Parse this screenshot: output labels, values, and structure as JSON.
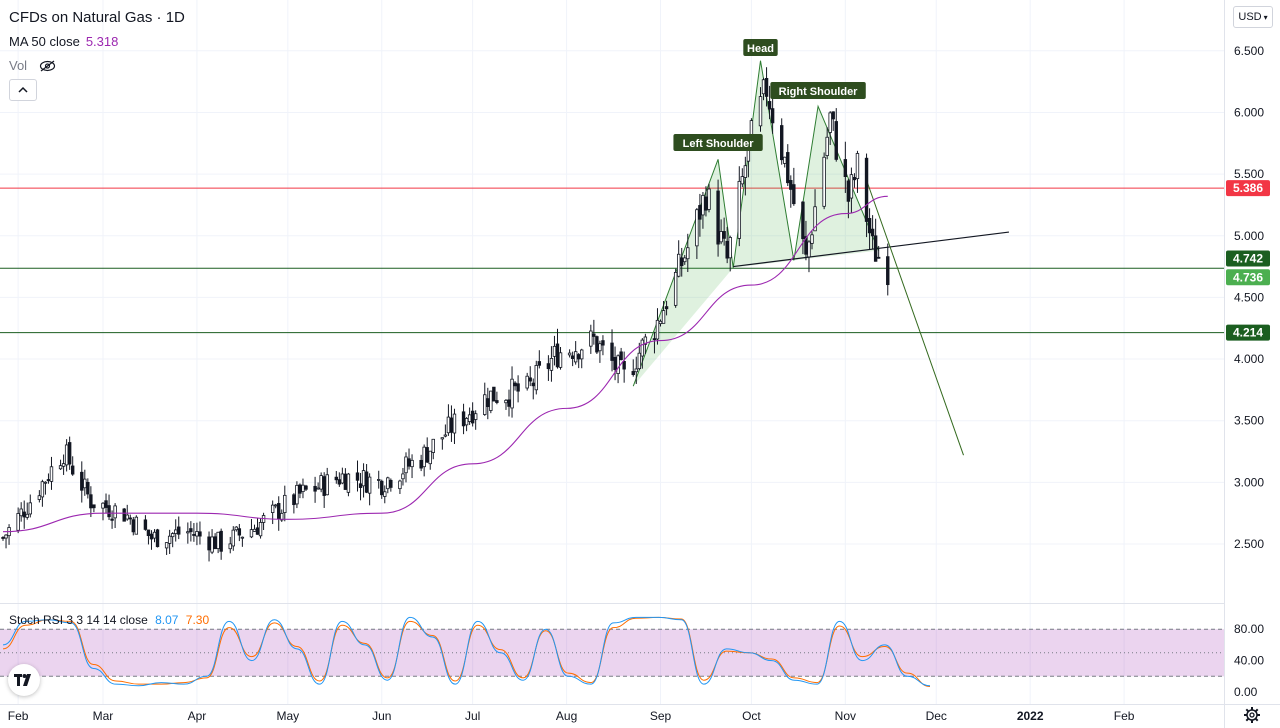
{
  "header": {
    "title": "CFDs on Natural Gas · 1D",
    "ma_label": "MA 50 close",
    "ma_value": "5.318",
    "vol_label": "Vol",
    "currency": "USD"
  },
  "stoch": {
    "label": "Stoch RSI 3 3 14 14 close",
    "k_value": "8.07",
    "d_value": "7.30"
  },
  "colors": {
    "up": "#26a69a",
    "down": "#ef5350",
    "candle": "#131722",
    "ma": "#9c27b0",
    "stoch_k": "#2196f3",
    "stoch_d": "#ff6d00",
    "resistance": "#f23645",
    "support": "#1b5e20",
    "pattern": "#4caf50"
  },
  "chart_data": {
    "type": "candlestick",
    "y_range": [
      2.2,
      6.7
    ],
    "y_ticks": [
      "6.500",
      "6.000",
      "5.500",
      "5.000",
      "4.500",
      "4.000",
      "3.500",
      "3.000",
      "2.500"
    ],
    "x_ticks": [
      "Feb",
      "Mar",
      "Apr",
      "May",
      "Jun",
      "Jul",
      "Aug",
      "Sep",
      "Oct",
      "Nov",
      "Dec",
      "2022",
      "Feb"
    ],
    "series": [
      {
        "name": "CFDs on Natural Gas",
        "kind": "candles",
        "close_path": [
          [
            "2021-01-27",
            2.55
          ],
          [
            "2021-02-05",
            2.85
          ],
          [
            "2021-02-16",
            3.25
          ],
          [
            "2021-02-25",
            2.85
          ],
          [
            "2021-03-08",
            2.75
          ],
          [
            "2021-03-17",
            2.55
          ],
          [
            "2021-03-29",
            2.6
          ],
          [
            "2021-04-09",
            2.5
          ],
          [
            "2021-04-21",
            2.65
          ],
          [
            "2021-05-05",
            2.9
          ],
          [
            "2021-05-19",
            3.05
          ],
          [
            "2021-06-01",
            3.0
          ],
          [
            "2021-06-14",
            3.2
          ],
          [
            "2021-06-24",
            3.45
          ],
          [
            "2021-07-06",
            3.7
          ],
          [
            "2021-07-19",
            3.75
          ],
          [
            "2021-07-29",
            4.05
          ],
          [
            "2021-08-10",
            4.15
          ],
          [
            "2021-08-20",
            3.85
          ],
          [
            "2021-08-31",
            4.3
          ],
          [
            "2021-09-10",
            4.9
          ],
          [
            "2021-09-16",
            5.35
          ],
          [
            "2021-09-23",
            4.8
          ],
          [
            "2021-09-30",
            5.7
          ],
          [
            "2021-10-06",
            6.2
          ],
          [
            "2021-10-13",
            5.5
          ],
          [
            "2021-10-19",
            4.8
          ],
          [
            "2021-10-27",
            5.95
          ],
          [
            "2021-11-02",
            5.3
          ],
          [
            "2021-11-05",
            5.55
          ],
          [
            "2021-11-10",
            4.9
          ],
          [
            "2021-11-15",
            4.74
          ]
        ]
      },
      {
        "name": "MA 50 close",
        "kind": "line",
        "points": [
          [
            "2021-01-27",
            2.6
          ],
          [
            "2021-03-01",
            2.75
          ],
          [
            "2021-04-01",
            2.75
          ],
          [
            "2021-05-01",
            2.7
          ],
          [
            "2021-06-01",
            2.75
          ],
          [
            "2021-07-01",
            3.15
          ],
          [
            "2021-08-01",
            3.6
          ],
          [
            "2021-09-01",
            4.15
          ],
          [
            "2021-10-01",
            4.6
          ],
          [
            "2021-11-01",
            5.18
          ],
          [
            "2021-11-15",
            5.32
          ]
        ]
      }
    ],
    "levels": [
      {
        "name": "resistance",
        "value": 5.386
      },
      {
        "name": "neckline",
        "value": 4.736
      },
      {
        "name": "support",
        "value": 4.214
      }
    ],
    "price_labels": [
      {
        "value": 5.386,
        "text": "5.386"
      },
      {
        "value": 4.742,
        "text": "4.742"
      },
      {
        "value": 4.736,
        "text": "4.736"
      },
      {
        "value": 4.214,
        "text": "4.214"
      }
    ],
    "annotations": [
      "Head",
      "Right Shoulder",
      "Left Shoulder"
    ],
    "pattern_points": {
      "left_shoulder": [
        "2021-09-20",
        5.62
      ],
      "head": [
        "2021-10-04",
        6.42
      ],
      "right_shoulder": [
        "2021-10-23",
        6.05
      ]
    },
    "trendline": [
      [
        "2021-09-25",
        4.75
      ],
      [
        "2021-12-25",
        5.03
      ]
    ],
    "projection": [
      [
        "2021-11-08",
        5.45
      ],
      [
        "2021-12-10",
        3.22
      ]
    ],
    "stoch_rsi": {
      "y_range": [
        0,
        100
      ],
      "y_ticks": [
        "80.00",
        "40.00",
        "0.00"
      ],
      "band": [
        20,
        80
      ],
      "k": [
        60,
        90,
        92,
        88,
        30,
        10,
        8,
        12,
        10,
        20,
        90,
        40,
        92,
        55,
        10,
        90,
        60,
        15,
        95,
        70,
        10,
        90,
        50,
        15,
        80,
        20,
        10,
        88,
        95,
        95,
        92,
        10,
        55,
        50,
        40,
        15,
        10,
        90,
        40,
        60,
        20,
        8
      ],
      "d": [
        55,
        85,
        92,
        90,
        35,
        14,
        10,
        10,
        12,
        18,
        82,
        45,
        88,
        58,
        14,
        85,
        62,
        18,
        90,
        72,
        14,
        85,
        54,
        18,
        78,
        24,
        12,
        82,
        94,
        95,
        93,
        15,
        52,
        50,
        42,
        18,
        12,
        84,
        45,
        58,
        24,
        7
      ]
    }
  }
}
